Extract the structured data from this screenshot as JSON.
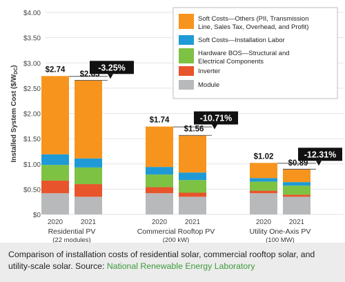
{
  "chart_data": {
    "type": "bar",
    "stacked": true,
    "ylabel": "Installed System Cost ($/W",
    "ylabel_sub": "DC",
    "ylabel_end": ")",
    "ylim": [
      0,
      4
    ],
    "yticks": [
      "$0",
      "$0.50",
      "$1.00",
      "$1.50",
      "$2.00",
      "$2.50",
      "$3.00",
      "$3.50",
      "$4.00"
    ],
    "yticks_values": [
      0,
      0.5,
      1,
      1.5,
      2,
      2.5,
      3,
      3.5,
      4
    ],
    "grid": true,
    "groups": [
      {
        "name": "Residential PV",
        "sub": "(22 modules)",
        "years": [
          "2020",
          "2021"
        ],
        "totals": [
          "$2.74",
          "$2.65"
        ],
        "change": "-3.25%"
      },
      {
        "name": "Commercial Rooftop PV",
        "sub": "(200 kW)",
        "years": [
          "2020",
          "2021"
        ],
        "totals": [
          "$1.74",
          "$1.56"
        ],
        "change": "-10.71%"
      },
      {
        "name": "Utility One-Axis PV",
        "sub": "(100 MW)",
        "years": [
          "2020",
          "2021"
        ],
        "totals": [
          "$1.02",
          "$0.89"
        ],
        "change": "-12.31%"
      }
    ],
    "series": [
      {
        "name": "Module",
        "color": "#b8b9bb",
        "values": [
          0.42,
          0.35,
          0.42,
          0.35,
          0.42,
          0.35
        ]
      },
      {
        "name": "Inverter",
        "color": "#e8542b",
        "values": [
          0.25,
          0.25,
          0.12,
          0.08,
          0.05,
          0.04
        ]
      },
      {
        "name": "Hardware BOS—Structural and Electrical Components",
        "color": "#7dc242",
        "values": [
          0.31,
          0.33,
          0.25,
          0.25,
          0.18,
          0.18
        ]
      },
      {
        "name": "Soft Costs—Installation Labor",
        "color": "#1f9ad6",
        "values": [
          0.21,
          0.18,
          0.15,
          0.15,
          0.07,
          0.07
        ]
      },
      {
        "name": "Soft Costs—Others (PII, Transmission Line, Sales Tax, Overhead, and Profit)",
        "color": "#f7941d",
        "values": [
          1.55,
          1.54,
          0.8,
          0.73,
          0.3,
          0.25
        ]
      }
    ],
    "legend_placement": "top-right"
  },
  "legend_items": [
    {
      "lines": [
        "Soft Costs—Others (PII, Transmission",
        "Line, Sales Tax, Overhead, and Profit)"
      ],
      "color": "#f7941d"
    },
    {
      "lines": [
        "Soft Costs—Installation Labor"
      ],
      "color": "#1f9ad6"
    },
    {
      "lines": [
        "Hardware BOS—Structural and",
        "Electrical Components"
      ],
      "color": "#7dc242"
    },
    {
      "lines": [
        "Inverter"
      ],
      "color": "#e8542b"
    },
    {
      "lines": [
        "Module"
      ],
      "color": "#b8b9bb"
    }
  ],
  "caption": {
    "text": "Comparison of installation costs of residential solar, commercial rooftop solar, and utility-scale solar. Source: ",
    "link": "National Renewable Energy Laboratory"
  },
  "colors": {
    "grid": "#e3e3e3",
    "axis_text": "#444444",
    "change_box": "#111111"
  }
}
